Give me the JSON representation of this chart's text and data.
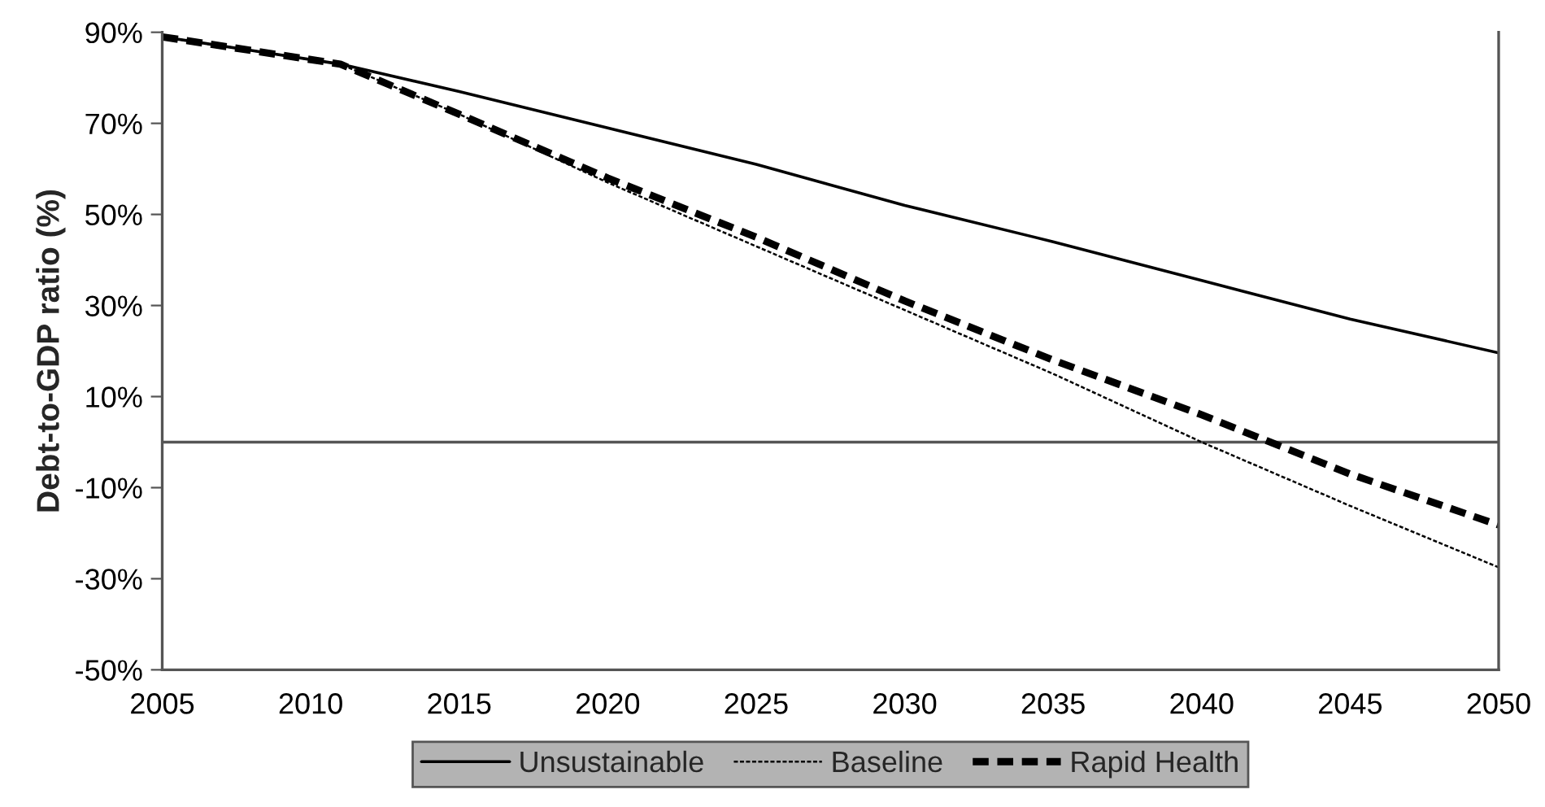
{
  "chart_data": {
    "type": "line",
    "ylabel": "Debt-to-GDP ratio (%)",
    "x": [
      2005,
      2008,
      2011,
      2015,
      2020,
      2025,
      2030,
      2035,
      2040,
      2045,
      2050
    ],
    "series": [
      {
        "name": "Unsustainable",
        "color": "#000000",
        "line_style": "solid",
        "values": [
          89,
          86,
          83,
          77,
          69,
          61,
          52,
          44,
          35.5,
          27,
          19.6
        ]
      },
      {
        "name": "Baseline",
        "color": "#000000",
        "line_style": "dotted",
        "values": [
          89,
          86,
          83,
          72,
          57,
          43,
          29,
          15,
          0,
          -14,
          -27.5
        ]
      },
      {
        "name": "Rapid Health",
        "color": "#000000",
        "line_style": "dashed",
        "values": [
          89,
          86,
          83,
          72,
          58,
          45,
          31,
          18,
          6,
          -7,
          -18.2
        ]
      }
    ],
    "xlim": [
      2005,
      2050
    ],
    "xticks": [
      2005,
      2010,
      2015,
      2020,
      2025,
      2030,
      2035,
      2040,
      2045,
      2050
    ],
    "ylim": [
      -50,
      90
    ],
    "yticks": [
      {
        "value": -50,
        "label": "-50%"
      },
      {
        "value": -30,
        "label": "-30%"
      },
      {
        "value": -10,
        "label": "-10%"
      },
      {
        "value": 10,
        "label": "10%"
      },
      {
        "value": 30,
        "label": "30%"
      },
      {
        "value": 50,
        "label": "50%"
      },
      {
        "value": 70,
        "label": "70%"
      },
      {
        "value": 90,
        "label": "90%"
      }
    ],
    "ref_lines": [
      {
        "axis": "y",
        "value": 0,
        "color": "#555555"
      }
    ],
    "grid": false,
    "legend": "bottom",
    "marker": "none"
  }
}
